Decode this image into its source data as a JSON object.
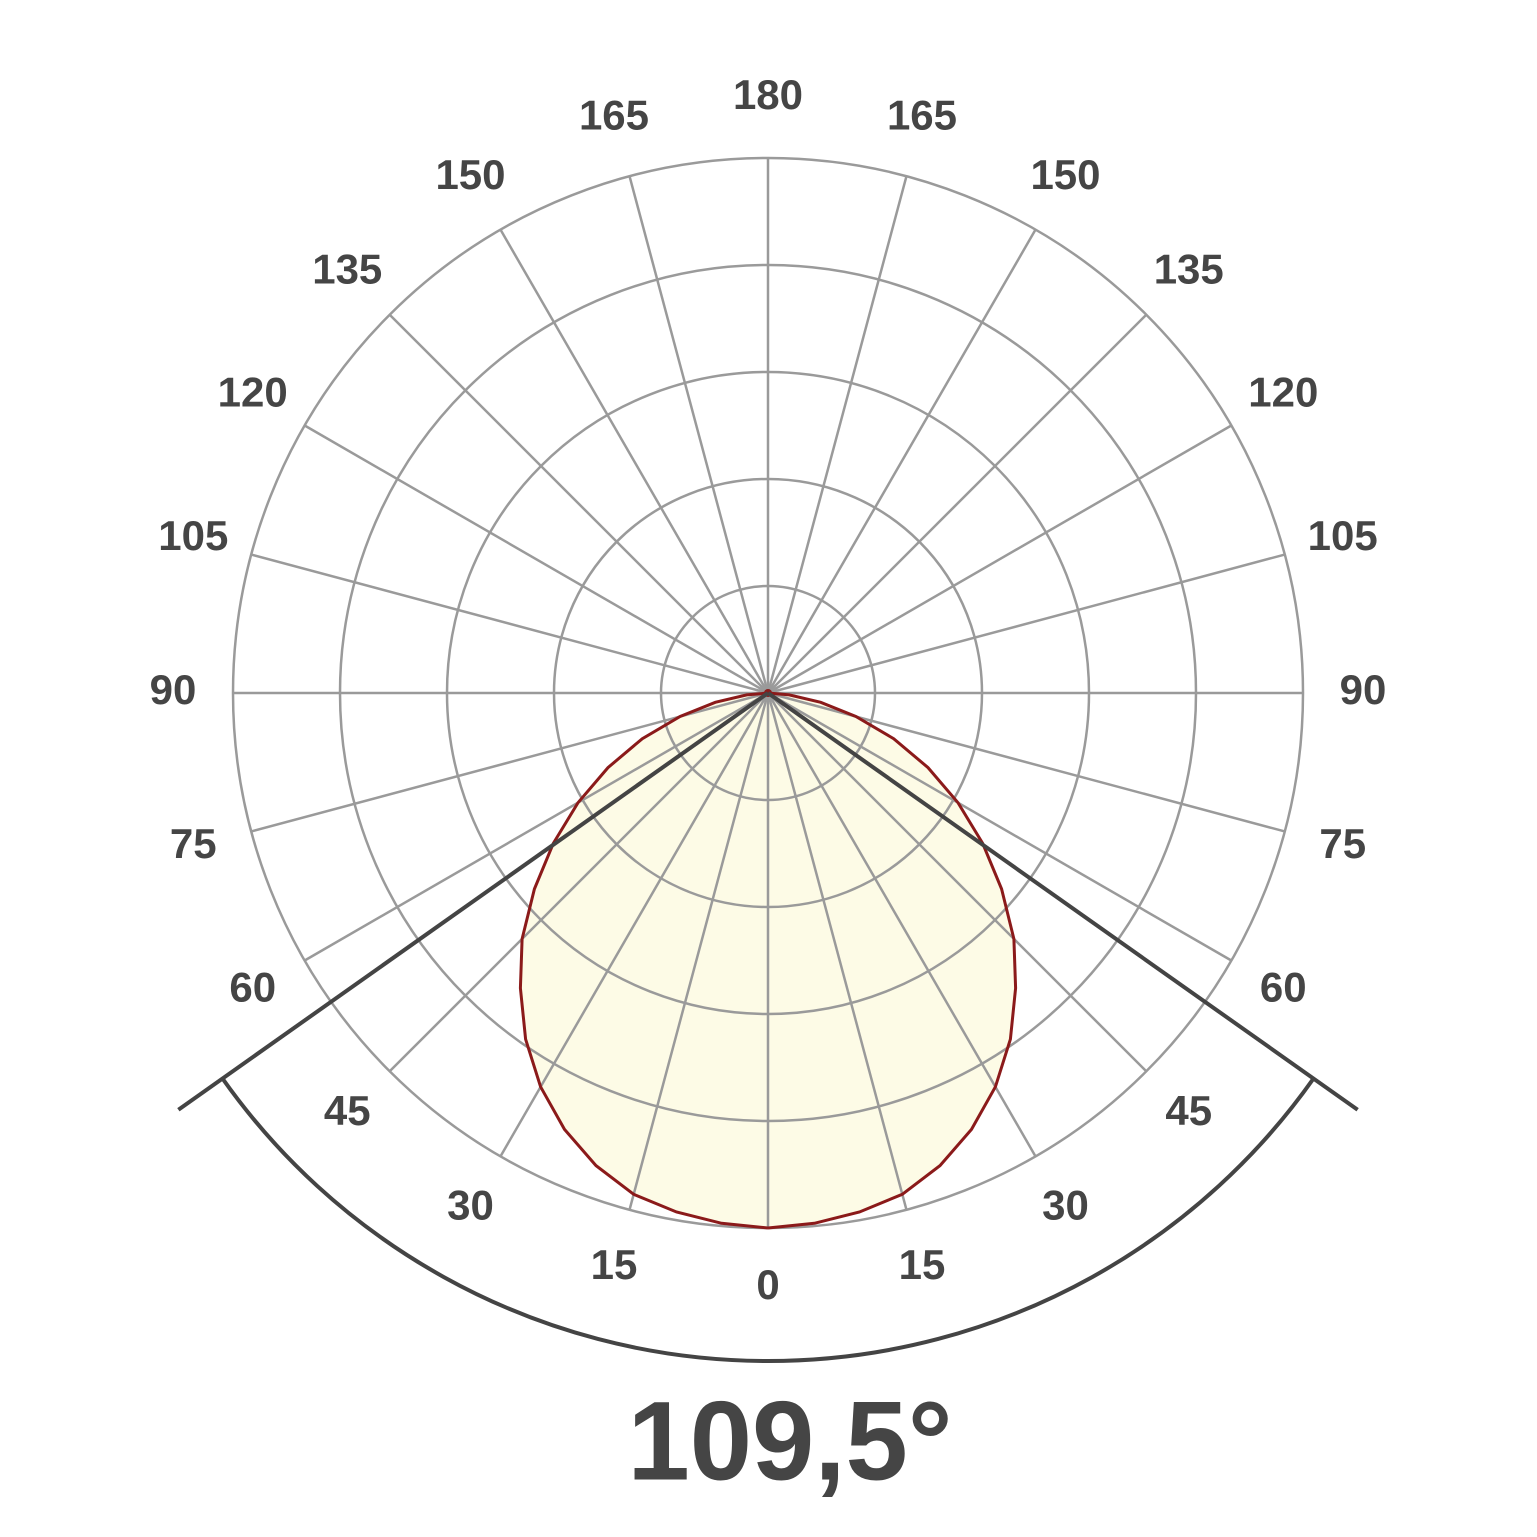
{
  "chart_data": {
    "type": "polar",
    "theta": [
      0,
      5,
      10,
      15,
      20,
      25,
      30,
      35,
      40,
      45,
      50,
      55,
      60,
      65,
      70,
      75,
      80,
      85,
      90
    ],
    "values": [
      100,
      99.5,
      98.5,
      97,
      94,
      90,
      85,
      79,
      72,
      65,
      57,
      49,
      41,
      33,
      25,
      17,
      10,
      4,
      0
    ],
    "symmetric": true,
    "color": "#8b1a1a",
    "fill": "#fdfbe6",
    "rlim": [
      0,
      100
    ],
    "rticks": [
      20,
      40,
      60,
      80,
      100
    ],
    "thetaticks": [
      0,
      15,
      30,
      45,
      60,
      75,
      90,
      105,
      120,
      135,
      150,
      165,
      180
    ],
    "beam_angle": {
      "value": 109.5,
      "label": "109,5°"
    }
  }
}
